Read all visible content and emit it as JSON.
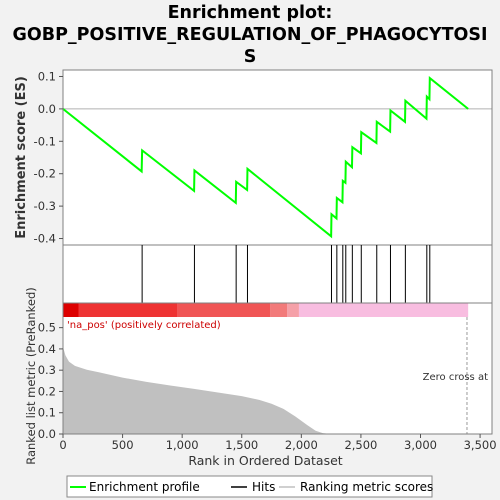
{
  "title_lines": [
    "Enrichment plot:",
    "GOBP_POSITIVE_REGULATION_OF_PHAGOCYTOSI",
    "S"
  ],
  "colors": {
    "es_line": "#00ff00",
    "hits": "#000000",
    "metric_fill": "#c0c0c0",
    "pos_label": "#cc0000",
    "zero_line": "#b0b0b0"
  },
  "chart_data": {
    "type": "line",
    "x_range": [
      0,
      3600
    ],
    "x_ticks": [
      0,
      500,
      1000,
      1500,
      2000,
      2500,
      3000,
      3500
    ],
    "x_tick_labels": [
      "0",
      "500",
      "1,000",
      "1,500",
      "2,000",
      "2,500",
      "3,000",
      "3,500"
    ],
    "xlabel": "Rank in Ordered Dataset",
    "es_panel": {
      "ylabel": "Enrichment score (ES)",
      "y_range": [
        -0.42,
        0.12
      ],
      "y_ticks": [
        0.1,
        0.0,
        -0.1,
        -0.2,
        -0.3,
        -0.4
      ],
      "y_tick_labels": [
        "0.1",
        "0.0",
        "-0.1",
        "-0.2",
        "-0.3",
        "-0.4"
      ],
      "series_name": "Enrichment profile",
      "points": [
        [
          0,
          0.0
        ],
        [
          660,
          -0.193
        ],
        [
          664,
          -0.128
        ],
        [
          1100,
          -0.253
        ],
        [
          1103,
          -0.19
        ],
        [
          1450,
          -0.29
        ],
        [
          1453,
          -0.225
        ],
        [
          1545,
          -0.25
        ],
        [
          1548,
          -0.185
        ],
        [
          2250,
          -0.393
        ],
        [
          2253,
          -0.325
        ],
        [
          2295,
          -0.338
        ],
        [
          2298,
          -0.275
        ],
        [
          2345,
          -0.288
        ],
        [
          2348,
          -0.222
        ],
        [
          2370,
          -0.228
        ],
        [
          2373,
          -0.163
        ],
        [
          2425,
          -0.18
        ],
        [
          2428,
          -0.118
        ],
        [
          2500,
          -0.137
        ],
        [
          2503,
          -0.072
        ],
        [
          2630,
          -0.105
        ],
        [
          2633,
          -0.04
        ],
        [
          2745,
          -0.07
        ],
        [
          2748,
          -0.005
        ],
        [
          2870,
          -0.04
        ],
        [
          2873,
          0.025
        ],
        [
          3050,
          -0.03
        ],
        [
          3053,
          0.038
        ],
        [
          3075,
          0.03
        ],
        [
          3078,
          0.095
        ],
        [
          3400,
          0.0
        ]
      ]
    },
    "hits": [
      664,
      1103,
      1453,
      1548,
      2253,
      2298,
      2348,
      2373,
      2428,
      2503,
      2633,
      2748,
      2873,
      3053,
      3078
    ],
    "hits_name": "Hits",
    "ranked_panel": {
      "ylabel": "Ranked list metric (PreRanked)",
      "y_range": [
        0.0,
        0.55
      ],
      "y_ticks": [
        0.0,
        0.1,
        0.2,
        0.3,
        0.4,
        0.5
      ],
      "y_tick_labels": [
        "0.0",
        "0.1",
        "0.2",
        "0.3",
        "0.4",
        "0.5"
      ],
      "series_name": "Ranking metric scores",
      "metric": [
        [
          0,
          0.41
        ],
        [
          20,
          0.37
        ],
        [
          50,
          0.34
        ],
        [
          100,
          0.32
        ],
        [
          200,
          0.302
        ],
        [
          300,
          0.29
        ],
        [
          500,
          0.265
        ],
        [
          700,
          0.245
        ],
        [
          900,
          0.228
        ],
        [
          1100,
          0.212
        ],
        [
          1300,
          0.195
        ],
        [
          1500,
          0.178
        ],
        [
          1650,
          0.16
        ],
        [
          1750,
          0.142
        ],
        [
          1850,
          0.118
        ],
        [
          1950,
          0.082
        ],
        [
          2050,
          0.042
        ],
        [
          2120,
          0.015
        ],
        [
          2180,
          0.004
        ],
        [
          2250,
          0.0
        ],
        [
          3400,
          0.0
        ]
      ],
      "pos_label": "'na_pos' (positively correlated)",
      "zero_cross_label": "Zero cross at",
      "zero_cross_x": 3390
    },
    "color_bar": [
      {
        "from": 0,
        "to": 130,
        "color": "#dd0000"
      },
      {
        "from": 130,
        "to": 960,
        "color": "#ee3333"
      },
      {
        "from": 960,
        "to": 1740,
        "color": "#f05555"
      },
      {
        "from": 1740,
        "to": 1880,
        "color": "#f27a7a"
      },
      {
        "from": 1880,
        "to": 1980,
        "color": "#f5a0a8"
      },
      {
        "from": 1980,
        "to": 3400,
        "color": "#f8bde0"
      }
    ],
    "legend": [
      "Enrichment profile",
      "Hits",
      "Ranking metric scores"
    ],
    "legend_position": "bottom"
  }
}
